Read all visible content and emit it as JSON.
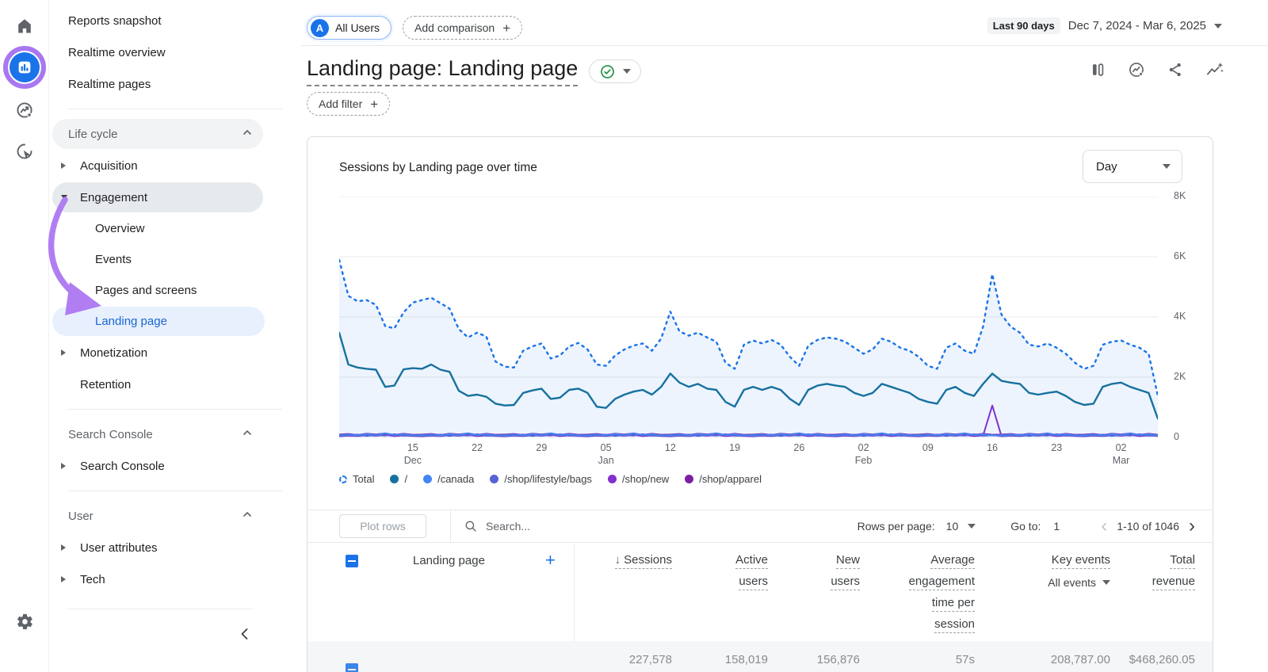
{
  "sidebar": {
    "top_items": [
      "Reports snapshot",
      "Realtime overview",
      "Realtime pages"
    ],
    "lifecycle": {
      "title": "Life cycle",
      "acquisition": "Acquisition",
      "engagement": "Engagement",
      "children": [
        "Overview",
        "Events",
        "Pages and screens",
        "Landing page"
      ],
      "monetization": "Monetization",
      "retention": "Retention"
    },
    "search_console": {
      "title": "Search Console",
      "item": "Search Console"
    },
    "user": {
      "title": "User",
      "items": [
        "User attributes",
        "Tech"
      ]
    }
  },
  "header": {
    "avatar": "A",
    "all_users": "All Users",
    "add_comparison": "Add comparison",
    "date_badge": "Last 90 days",
    "date_range": "Dec 7, 2024 - Mar 6, 2025",
    "title": "Landing page: Landing page",
    "add_filter": "Add filter"
  },
  "chart_data": {
    "type": "line",
    "title": "Sessions by Landing page over time",
    "granularity": "Day",
    "legend_position": "bottom",
    "grid": true,
    "ylim": [
      0,
      8000
    ],
    "yticks": [
      {
        "v": 0,
        "label": "0"
      },
      {
        "v": 2000,
        "label": "2K"
      },
      {
        "v": 4000,
        "label": "4K"
      },
      {
        "v": 6000,
        "label": "6K"
      },
      {
        "v": 8000,
        "label": "8K"
      }
    ],
    "x_days": 90,
    "xticks": [
      {
        "d": 8,
        "day": "15",
        "month": "Dec"
      },
      {
        "d": 15,
        "day": "22"
      },
      {
        "d": 22,
        "day": "29"
      },
      {
        "d": 29,
        "day": "05",
        "month": "Jan"
      },
      {
        "d": 36,
        "day": "12"
      },
      {
        "d": 43,
        "day": "19"
      },
      {
        "d": 50,
        "day": "26"
      },
      {
        "d": 57,
        "day": "02",
        "month": "Feb"
      },
      {
        "d": 64,
        "day": "09"
      },
      {
        "d": 71,
        "day": "16"
      },
      {
        "d": 78,
        "day": "23"
      },
      {
        "d": 85,
        "day": "02",
        "month": "Mar"
      }
    ],
    "series": [
      {
        "name": "Total",
        "style": "dotted",
        "color": "#1a73e8",
        "fill": "rgba(26,115,232,0.08)",
        "width": 2.4,
        "values": [
          5900,
          4700,
          4520,
          4560,
          4400,
          3700,
          3620,
          4150,
          4480,
          4560,
          4640,
          4460,
          4280,
          3600,
          3320,
          3480,
          3350,
          2520,
          2350,
          2320,
          2880,
          3020,
          3120,
          2620,
          2720,
          3020,
          3140,
          2920,
          2420,
          2380,
          2720,
          2920,
          3050,
          3120,
          2880,
          3280,
          4180,
          3520,
          3380,
          3480,
          3320,
          3180,
          2480,
          2280,
          3080,
          3220,
          3120,
          3240,
          3080,
          2680,
          2380,
          3050,
          3240,
          3320,
          3280,
          3180,
          2980,
          2780,
          2920,
          3280,
          3180,
          2980,
          2880,
          2680,
          2380,
          2280,
          2980,
          3120,
          2880,
          2780,
          3680,
          5420,
          4080,
          3680,
          3480,
          3080,
          3020,
          3120,
          2980,
          2780,
          2480,
          2280,
          2380,
          3080,
          3180,
          3220,
          3080,
          2980,
          2780,
          1380
        ]
      },
      {
        "name": "/",
        "style": "solid",
        "color": "#17719f",
        "width": 2.4,
        "values": [
          3480,
          2420,
          2320,
          2280,
          2250,
          1680,
          1720,
          2260,
          2300,
          2280,
          2420,
          2250,
          2180,
          1550,
          1380,
          1420,
          1350,
          1120,
          1060,
          1080,
          1480,
          1560,
          1620,
          1280,
          1320,
          1580,
          1620,
          1480,
          1020,
          980,
          1280,
          1420,
          1520,
          1580,
          1420,
          1680,
          2120,
          1820,
          1680,
          1780,
          1620,
          1580,
          1180,
          1020,
          1580,
          1680,
          1580,
          1680,
          1580,
          1280,
          1080,
          1580,
          1720,
          1780,
          1720,
          1680,
          1480,
          1380,
          1480,
          1780,
          1680,
          1580,
          1480,
          1280,
          1180,
          1120,
          1580,
          1680,
          1480,
          1380,
          1780,
          2120,
          1880,
          1820,
          1780,
          1480,
          1420,
          1480,
          1520,
          1380,
          1180,
          1080,
          1120,
          1680,
          1780,
          1820,
          1680,
          1580,
          1480,
          620
        ]
      },
      {
        "name": "/canada",
        "style": "solid",
        "color": "#4285f4",
        "width": 2,
        "values": [
          70,
          95,
          60,
          115,
          80,
          140,
          75,
          105,
          65,
          70,
          95,
          60,
          115,
          80,
          140,
          75,
          105,
          65,
          70,
          95,
          60,
          115,
          80,
          140,
          75,
          105,
          65,
          70,
          95,
          60,
          115,
          80,
          140,
          75,
          105,
          65,
          70,
          95,
          60,
          115,
          80,
          140,
          75,
          105,
          65,
          70,
          95,
          60,
          115,
          80,
          140,
          75,
          105,
          65,
          70,
          95,
          60,
          115,
          80,
          140,
          75,
          105,
          65,
          70,
          95,
          60,
          115,
          80,
          140,
          75,
          105,
          65,
          70,
          95,
          60,
          115,
          80,
          140,
          75,
          105,
          65,
          70,
          95,
          60,
          115,
          80,
          140,
          75,
          105,
          65
        ]
      },
      {
        "name": "/shop/lifestyle/bags",
        "style": "solid",
        "color": "#5861d6",
        "width": 2,
        "values": [
          45,
          70,
          95,
          50,
          85,
          60,
          110,
          55,
          75,
          45,
          70,
          95,
          50,
          85,
          60,
          110,
          55,
          75,
          45,
          70,
          95,
          50,
          85,
          60,
          110,
          55,
          75,
          45,
          70,
          95,
          50,
          85,
          60,
          110,
          55,
          75,
          45,
          70,
          95,
          50,
          85,
          60,
          110,
          55,
          75,
          45,
          70,
          95,
          50,
          85,
          60,
          110,
          55,
          75,
          45,
          70,
          95,
          50,
          85,
          60,
          110,
          55,
          75,
          45,
          70,
          95,
          50,
          85,
          60,
          110,
          55,
          75,
          45,
          70,
          95,
          50,
          85,
          60,
          110,
          55,
          75,
          45,
          70,
          95,
          50,
          85,
          60,
          110,
          55,
          75
        ]
      },
      {
        "name": "/shop/new",
        "style": "solid",
        "color": "#8430ce",
        "width": 2,
        "values": [
          40,
          60,
          48,
          72,
          55,
          88,
          45,
          65,
          50,
          40,
          60,
          48,
          72,
          55,
          88,
          45,
          65,
          50,
          40,
          60,
          48,
          72,
          55,
          88,
          45,
          65,
          50,
          40,
          60,
          48,
          72,
          55,
          88,
          45,
          65,
          50,
          40,
          60,
          48,
          72,
          55,
          88,
          45,
          65,
          50,
          40,
          60,
          48,
          72,
          55,
          88,
          45,
          65,
          50,
          40,
          60,
          48,
          72,
          55,
          88,
          45,
          65,
          50,
          40,
          60,
          48,
          72,
          55,
          88,
          45,
          65,
          1060,
          40,
          60,
          48,
          72,
          55,
          88,
          45,
          65,
          50,
          40,
          60,
          48,
          72,
          55,
          88,
          45,
          65,
          50
        ]
      },
      {
        "name": "/shop/apparel",
        "style": "solid",
        "color": "#7b1fa2",
        "width": 2,
        "values": [
          95,
          115,
          80,
          125,
          100,
          135,
          85,
          120,
          90,
          95,
          115,
          80,
          125,
          100,
          135,
          85,
          120,
          90,
          95,
          115,
          80,
          125,
          100,
          135,
          85,
          120,
          90,
          95,
          115,
          80,
          125,
          100,
          135,
          85,
          120,
          90,
          95,
          115,
          80,
          125,
          100,
          135,
          85,
          120,
          90,
          95,
          115,
          80,
          125,
          100,
          135,
          85,
          120,
          90,
          95,
          115,
          80,
          125,
          100,
          135,
          85,
          120,
          90,
          95,
          115,
          80,
          125,
          100,
          135,
          85,
          120,
          90,
          95,
          115,
          80,
          125,
          100,
          135,
          85,
          120,
          90,
          95,
          115,
          80,
          125,
          100,
          135,
          85,
          120,
          90
        ]
      }
    ]
  },
  "table": {
    "plot_rows": "Plot rows",
    "search_placeholder": "Search...",
    "rows_per_page_label": "Rows per page:",
    "rows_per_page_value": "10",
    "goto_label": "Go to:",
    "goto_value": "1",
    "pagination": "1-10 of 1046",
    "dimension_header": "Landing page",
    "header": {
      "sessions": "Sessions",
      "active": [
        "Active",
        "users"
      ],
      "new": [
        "New",
        "users"
      ],
      "avg": [
        "Average",
        "engagement",
        "time per",
        "session"
      ],
      "key": "Key events",
      "key_filter": "All events",
      "total": [
        "Total",
        "revenue"
      ]
    },
    "totals": [
      "227,578",
      "158,019",
      "156,876",
      "57s",
      "208,787.00",
      "$468,260.05"
    ]
  }
}
